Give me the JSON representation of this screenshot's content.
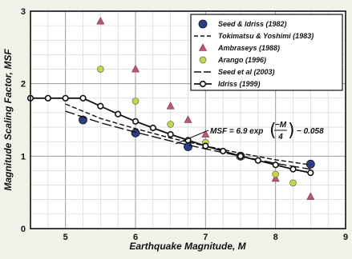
{
  "chart_data": {
    "type": "scatter",
    "title": "",
    "xlabel": "Earthquake Magnitude, M",
    "ylabel": "Magnitude Scaling Factor, MSF",
    "xlim": [
      4.5,
      9
    ],
    "ylim": [
      0,
      3
    ],
    "x_ticks": [
      "5",
      "6",
      "7",
      "8",
      "9"
    ],
    "y_ticks": [
      "0",
      "1",
      "2",
      "3"
    ],
    "grid": true,
    "legend_position": "top-right",
    "equation": {
      "prefix": "MSF = 6.9 exp",
      "numerator": "−M",
      "denominator": "4",
      "suffix": "− 0.058"
    },
    "series": [
      {
        "name": "Seed & Idriss (1982)",
        "style": "dot",
        "color": "#2b3f86",
        "points": [
          [
            5.25,
            1.5
          ],
          [
            6.0,
            1.32
          ],
          [
            6.75,
            1.13
          ],
          [
            7.5,
            1.0
          ],
          [
            8.5,
            0.89
          ]
        ]
      },
      {
        "name": "Tokimatsu & Yoshimi (1983)",
        "style": "dash",
        "color": "#111111",
        "points": [
          [
            5.0,
            1.72
          ],
          [
            5.5,
            1.52
          ],
          [
            6.0,
            1.38
          ],
          [
            6.5,
            1.25
          ],
          [
            7.0,
            1.14
          ],
          [
            7.5,
            1.04
          ],
          [
            8.0,
            0.95
          ],
          [
            8.5,
            0.88
          ]
        ]
      },
      {
        "name": "Ambraseys (1988)",
        "style": "triangle",
        "color": "#b8577a",
        "points": [
          [
            5.5,
            2.86
          ],
          [
            6.0,
            2.2
          ],
          [
            6.5,
            1.69
          ],
          [
            6.75,
            1.5
          ],
          [
            7.0,
            1.3
          ],
          [
            7.5,
            1.0
          ],
          [
            8.0,
            0.69
          ],
          [
            8.5,
            0.44
          ]
        ]
      },
      {
        "name": "Arango (1996)",
        "style": "circle",
        "color": "#c4d545",
        "points": [
          [
            5.5,
            2.2
          ],
          [
            6.0,
            1.76
          ],
          [
            6.5,
            1.44
          ],
          [
            7.0,
            1.19
          ],
          [
            7.5,
            1.0
          ],
          [
            8.0,
            0.75
          ],
          [
            8.25,
            0.63
          ]
        ]
      },
      {
        "name": "Seed et al (2003)",
        "style": "longdash",
        "color": "#111111",
        "points": [
          [
            5.0,
            1.62
          ],
          [
            5.5,
            1.46
          ],
          [
            6.0,
            1.33
          ],
          [
            6.5,
            1.21
          ],
          [
            7.0,
            1.1
          ],
          [
            7.5,
            1.0
          ],
          [
            8.0,
            0.9
          ],
          [
            8.5,
            0.82
          ]
        ]
      },
      {
        "name": "Idriss (1999)",
        "style": "line-marker",
        "color": "#111111",
        "points": [
          [
            4.5,
            1.8
          ],
          [
            4.75,
            1.8
          ],
          [
            5.0,
            1.8
          ],
          [
            5.25,
            1.8
          ],
          [
            5.5,
            1.69
          ],
          [
            5.75,
            1.58
          ],
          [
            6.0,
            1.48
          ],
          [
            6.25,
            1.39
          ],
          [
            6.5,
            1.3
          ],
          [
            6.75,
            1.22
          ],
          [
            7.0,
            1.14
          ],
          [
            7.25,
            1.07
          ],
          [
            7.5,
            1.0
          ],
          [
            7.75,
            0.94
          ],
          [
            8.0,
            0.88
          ],
          [
            8.25,
            0.82
          ],
          [
            8.5,
            0.77
          ]
        ]
      }
    ]
  }
}
